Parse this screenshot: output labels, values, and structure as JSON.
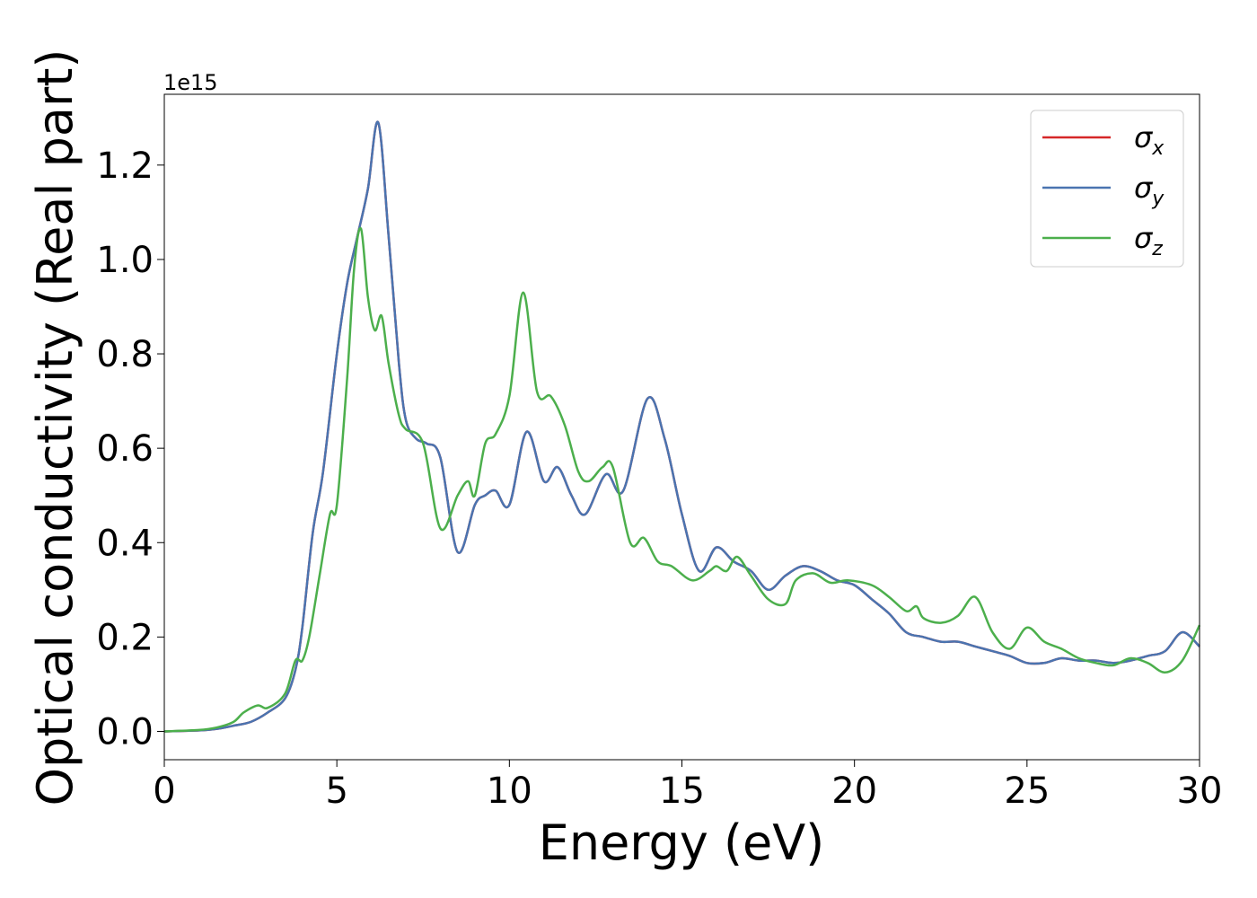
{
  "chart_data": {
    "type": "line",
    "title": "",
    "xlabel": "Energy (eV)",
    "ylabel": "Optical conductivity (Real part)",
    "y_offset_label": "1e15",
    "xlim": [
      0,
      30
    ],
    "ylim": [
      -0.06,
      1.35
    ],
    "x_ticks": [
      0,
      5,
      10,
      15,
      20,
      25,
      30
    ],
    "x_tick_labels": [
      "0",
      "5",
      "10",
      "15",
      "20",
      "25",
      "30"
    ],
    "y_ticks": [
      0.0,
      0.2,
      0.4,
      0.6,
      0.8,
      1.0,
      1.2
    ],
    "y_tick_labels": [
      "0.0",
      "0.2",
      "0.4",
      "0.6",
      "0.8",
      "1.0",
      "1.2"
    ],
    "grid": false,
    "legend_position": "top-right",
    "legend": [
      {
        "base": "σ",
        "sub": "x",
        "color": "#d62728"
      },
      {
        "base": "σ",
        "sub": "y",
        "color": "#4a74b0"
      },
      {
        "base": "σ",
        "sub": "z",
        "color": "#4caf4c"
      }
    ],
    "series": [
      {
        "name": "σx",
        "color": "#d62728",
        "x": [
          0,
          1,
          1.5,
          2,
          2.5,
          3,
          3.5,
          3.8,
          4,
          4.3,
          4.6,
          5,
          5.3,
          5.6,
          5.9,
          6.2,
          6.5,
          6.8,
          7,
          7.3,
          7.6,
          8,
          8.5,
          9,
          9.3,
          9.6,
          10,
          10.5,
          11,
          11.4,
          11.8,
          12.2,
          12.8,
          13.3,
          14,
          14.5,
          15,
          15.5,
          16,
          16.5,
          17,
          17.5,
          18,
          18.5,
          19,
          19.5,
          20,
          20.5,
          21,
          21.5,
          22,
          22.5,
          23,
          23.5,
          24,
          24.5,
          25,
          25.5,
          26,
          26.5,
          27,
          27.5,
          28,
          28.5,
          29,
          29.5,
          30
        ],
        "y": [
          0.0,
          0.002,
          0.005,
          0.012,
          0.02,
          0.04,
          0.07,
          0.13,
          0.22,
          0.42,
          0.55,
          0.8,
          0.95,
          1.05,
          1.15,
          1.29,
          1.05,
          0.78,
          0.66,
          0.62,
          0.61,
          0.58,
          0.38,
          0.48,
          0.5,
          0.51,
          0.48,
          0.635,
          0.53,
          0.56,
          0.5,
          0.46,
          0.545,
          0.51,
          0.705,
          0.62,
          0.46,
          0.34,
          0.39,
          0.36,
          0.34,
          0.3,
          0.33,
          0.35,
          0.34,
          0.32,
          0.31,
          0.28,
          0.25,
          0.21,
          0.2,
          0.19,
          0.19,
          0.18,
          0.17,
          0.16,
          0.145,
          0.145,
          0.155,
          0.15,
          0.15,
          0.145,
          0.15,
          0.16,
          0.17,
          0.21,
          0.18
        ]
      },
      {
        "name": "σy",
        "color": "#4a74b0",
        "x": [
          0,
          1,
          1.5,
          2,
          2.5,
          3,
          3.5,
          3.8,
          4,
          4.3,
          4.6,
          5,
          5.3,
          5.6,
          5.9,
          6.2,
          6.5,
          6.8,
          7,
          7.3,
          7.6,
          8,
          8.5,
          9,
          9.3,
          9.6,
          10,
          10.5,
          11,
          11.4,
          11.8,
          12.2,
          12.8,
          13.3,
          14,
          14.5,
          15,
          15.5,
          16,
          16.5,
          17,
          17.5,
          18,
          18.5,
          19,
          19.5,
          20,
          20.5,
          21,
          21.5,
          22,
          22.5,
          23,
          23.5,
          24,
          24.5,
          25,
          25.5,
          26,
          26.5,
          27,
          27.5,
          28,
          28.5,
          29,
          29.5,
          30
        ],
        "y": [
          0.0,
          0.002,
          0.005,
          0.012,
          0.02,
          0.04,
          0.07,
          0.13,
          0.22,
          0.42,
          0.55,
          0.8,
          0.95,
          1.05,
          1.15,
          1.29,
          1.05,
          0.78,
          0.66,
          0.62,
          0.61,
          0.58,
          0.38,
          0.48,
          0.5,
          0.51,
          0.48,
          0.635,
          0.53,
          0.56,
          0.5,
          0.46,
          0.545,
          0.51,
          0.705,
          0.62,
          0.46,
          0.34,
          0.39,
          0.36,
          0.34,
          0.3,
          0.33,
          0.35,
          0.34,
          0.32,
          0.31,
          0.28,
          0.25,
          0.21,
          0.2,
          0.19,
          0.19,
          0.18,
          0.17,
          0.16,
          0.145,
          0.145,
          0.155,
          0.15,
          0.15,
          0.145,
          0.15,
          0.16,
          0.17,
          0.21,
          0.18
        ]
      },
      {
        "name": "σz",
        "color": "#4caf4c",
        "x": [
          0,
          1,
          1.5,
          2,
          2.3,
          2.7,
          3,
          3.5,
          3.8,
          4,
          4.2,
          4.5,
          4.8,
          5,
          5.3,
          5.5,
          5.7,
          5.9,
          6.1,
          6.3,
          6.5,
          6.8,
          7,
          7.5,
          8,
          8.5,
          8.8,
          9,
          9.3,
          9.6,
          10,
          10.4,
          10.8,
          11.2,
          11.6,
          12,
          12.3,
          12.7,
          13,
          13.5,
          13.9,
          14.3,
          14.7,
          15.3,
          15.8,
          16,
          16.3,
          16.6,
          17,
          17.5,
          18,
          18.3,
          18.8,
          19.3,
          19.8,
          20.5,
          21,
          21.5,
          21.8,
          22,
          22.5,
          23,
          23.5,
          24,
          24.5,
          25,
          25.5,
          26,
          26.5,
          27,
          27.5,
          28,
          28.5,
          29,
          29.5,
          30
        ],
        "y": [
          0.0,
          0.003,
          0.008,
          0.02,
          0.04,
          0.055,
          0.05,
          0.08,
          0.15,
          0.15,
          0.2,
          0.33,
          0.46,
          0.48,
          0.75,
          0.98,
          1.065,
          0.92,
          0.85,
          0.88,
          0.78,
          0.67,
          0.64,
          0.61,
          0.43,
          0.5,
          0.53,
          0.5,
          0.61,
          0.63,
          0.71,
          0.93,
          0.72,
          0.71,
          0.65,
          0.55,
          0.53,
          0.56,
          0.56,
          0.4,
          0.41,
          0.36,
          0.35,
          0.32,
          0.34,
          0.35,
          0.34,
          0.37,
          0.33,
          0.28,
          0.27,
          0.32,
          0.335,
          0.315,
          0.32,
          0.31,
          0.285,
          0.255,
          0.265,
          0.24,
          0.23,
          0.245,
          0.285,
          0.21,
          0.175,
          0.22,
          0.19,
          0.175,
          0.155,
          0.145,
          0.14,
          0.155,
          0.145,
          0.125,
          0.15,
          0.225
        ]
      }
    ]
  }
}
